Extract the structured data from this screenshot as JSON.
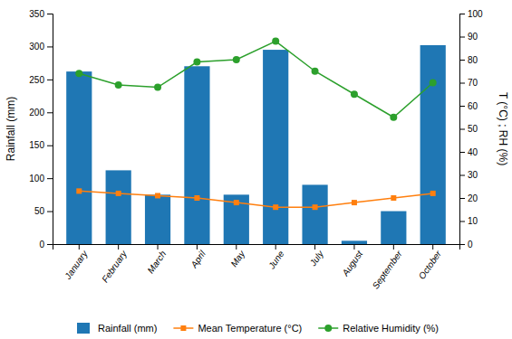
{
  "chart_data": {
    "type": "bar",
    "categories": [
      "January",
      "February",
      "March",
      "April",
      "May",
      "June",
      "July",
      "August",
      "September",
      "October"
    ],
    "ylabel": "Rainfall (mm)",
    "y2label": "T (°C) ; RH (%)",
    "ylim": [
      0,
      350
    ],
    "yticks": [
      0,
      50,
      100,
      150,
      200,
      250,
      300,
      350
    ],
    "y2lim": [
      0,
      100
    ],
    "y2ticks": [
      0,
      10,
      20,
      30,
      40,
      50,
      60,
      70,
      80,
      90,
      100
    ],
    "grid": false,
    "legend": "bottom",
    "series": [
      {
        "name": "Rainfall (mm)",
        "type": "bar",
        "axis": "y",
        "values": [
          262,
          112,
          75,
          270,
          75,
          295,
          90,
          5,
          50,
          302
        ]
      },
      {
        "name": "Mean Temperature (°C)",
        "type": "line",
        "axis": "y2",
        "marker": "square",
        "values": [
          23,
          22,
          21,
          20,
          18,
          16,
          16,
          18,
          20,
          22
        ]
      },
      {
        "name": "Relative Humidity (%)",
        "type": "line",
        "axis": "y2",
        "marker": "circle",
        "values": [
          74,
          69,
          68,
          79,
          80,
          88,
          75,
          65,
          55,
          70
        ]
      }
    ]
  }
}
